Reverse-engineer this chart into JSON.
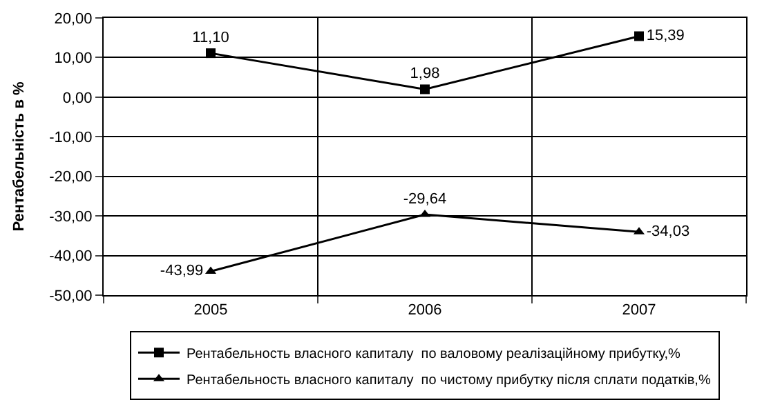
{
  "chart_data": {
    "type": "line",
    "ylabel": "Рентабельність в %",
    "categories": [
      "2005",
      "2006",
      "2007"
    ],
    "series": [
      {
        "name": "Рентабельность власного капиталу  по валовому реалізаційному прибутку,%",
        "color": "#000000",
        "marker": "square",
        "values": [
          11.1,
          1.98,
          15.39
        ],
        "value_labels": [
          "11,10",
          "1,98",
          "15,39"
        ]
      },
      {
        "name": "Рентабельность власного капиталу  по чистому прибутку після сплати податків,%",
        "color": "#000000",
        "marker": "triangle",
        "values": [
          -43.99,
          -29.64,
          -34.03
        ],
        "value_labels": [
          "-43,99",
          "-29,64",
          "-34,03"
        ]
      }
    ],
    "ylim": [
      -50,
      20
    ],
    "yticks": [
      {
        "value": 20,
        "label": "20,00"
      },
      {
        "value": 10,
        "label": "10,00"
      },
      {
        "value": 0,
        "label": "0,00"
      },
      {
        "value": -10,
        "label": "-10,00"
      },
      {
        "value": -20,
        "label": "-20,00"
      },
      {
        "value": -30,
        "label": "-30,00"
      },
      {
        "value": -40,
        "label": "-40,00"
      },
      {
        "value": -50,
        "label": "-50,00"
      }
    ],
    "grid": true,
    "legend": "bottom",
    "line_style": "solid"
  }
}
